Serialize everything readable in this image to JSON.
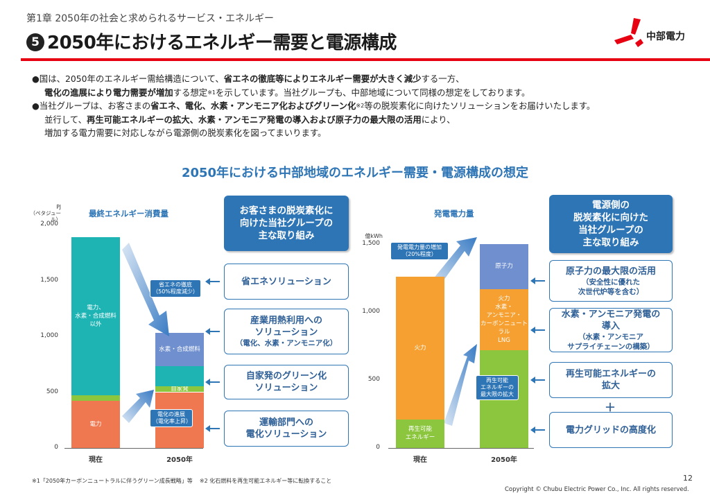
{
  "header": {
    "chapter": "第1章 2050年の社会と求められるサービス・エネルギー",
    "number": "5",
    "title": "2050年におけるエネルギー需要と電源構成",
    "logo_text": "中部電力",
    "accent": "#e60012"
  },
  "bullets": [
    {
      "segs": [
        [
          "n",
          "●国は、2050年のエネルギー需給構造について、"
        ],
        [
          "b",
          "省エネの徹底等によりエネルギー需要が大きく減少"
        ],
        [
          "n",
          "する一方、"
        ]
      ],
      "indent": false
    },
    {
      "segs": [
        [
          "b",
          "電化の進展により電力需要が増加"
        ],
        [
          "n",
          "する想定"
        ],
        [
          "s",
          "※1"
        ],
        [
          "n",
          "を示しています。当社グループも、中部地域について同様の想定をしております。"
        ]
      ],
      "indent": true
    },
    {
      "segs": [
        [
          "n",
          "●当社グループは、お客さまの"
        ],
        [
          "b",
          "省エネ、電化、水素・アンモニア化およびグリーン化"
        ],
        [
          "s",
          "※2"
        ],
        [
          "n",
          "等の脱炭素化に向けたソリューションをお届けいたします。"
        ]
      ],
      "indent": false
    },
    {
      "segs": [
        [
          "n",
          "並行して、"
        ],
        [
          "b",
          "再生可能エネルギーの拡大、水素・アンモニア発電の導入および原子力の最大限の活用"
        ],
        [
          "n",
          "により、"
        ]
      ],
      "indent": true
    },
    {
      "segs": [
        [
          "n",
          "増加する電力需要に対応しながら電源側の脱炭素化を図ってまいります。"
        ]
      ],
      "indent": true
    }
  ],
  "section_title": "2050年における中部地域のエネルギー需要・電源構成の想定",
  "chart_data": [
    {
      "type": "bar",
      "title": "最終エネルギー消費量",
      "ylabel": "PJ",
      "ylabel_sub": "（ペタジュール）",
      "ylim": [
        0,
        2000
      ],
      "yticks": [
        "0",
        "500",
        "1,000",
        "1,500",
        "2,000"
      ],
      "categories": [
        "現在",
        "2050年"
      ],
      "series": [
        {
          "name": "電力",
          "values": [
            420,
            500
          ],
          "color": "#f07850"
        },
        {
          "name": "水素・合成燃料",
          "values": [
            0,
            300
          ],
          "color": "#6f8fcf"
        }
      ],
      "stacks": [
        [
          {
            "label": "電力",
            "value": 420,
            "color": "#f07850"
          },
          {
            "label": "",
            "value": 50,
            "color": "#8cc63f"
          },
          {
            "label": "電力、\n水素・合成燃料\n以外",
            "value": 1420,
            "color": "#1fb4b4"
          }
        ],
        [
          {
            "label": "",
            "value": 500,
            "color": "#f07850"
          },
          {
            "label": "自家発",
            "value": 50,
            "color": "#8cc63f"
          },
          {
            "label": "",
            "value": 180,
            "color": "#1fb4b4"
          },
          {
            "label": "水素・合成燃料",
            "value": 300,
            "color": "#6f8fcf"
          }
        ]
      ],
      "annotations": [
        "省エネの徹底\n（50%程度減少）",
        "電化の進展\n（電化率上昇）"
      ]
    },
    {
      "type": "bar",
      "title": "発電電力量",
      "ylabel": "億kWh",
      "ylim": [
        0,
        1500
      ],
      "yticks": [
        "0",
        "500",
        "1,000",
        "1,500"
      ],
      "categories": [
        "現在",
        "2050年"
      ],
      "stacks": [
        [
          {
            "label": "再生可能\nエネルギー",
            "value": 210,
            "color": "#8cc63f"
          },
          {
            "label": "火力",
            "value": 1050,
            "color": "#f5a030"
          }
        ],
        [
          {
            "label": "",
            "value": 720,
            "color": "#8cc63f"
          },
          {
            "label": "火力\n水素・\nアンモニア・\nカーボンニュートラル\nLNG",
            "value": 450,
            "color": "#f5a030"
          },
          {
            "label": "原子力",
            "value": 330,
            "color": "#6f8fcf"
          }
        ]
      ],
      "annotations": [
        "発電電力量の増加\n（20%程度）",
        "再生可能\nエネルギーの\n最大限の拡大"
      ]
    }
  ],
  "left_panel": {
    "header": "お客さまの脱炭素化に\n向けた当社グループの\n主な取り組み",
    "items": [
      {
        "title": "省エネソリューション",
        "sub": ""
      },
      {
        "title": "産業用熱利用への\nソリューション",
        "sub": "（電化、水素・アンモニア化）"
      },
      {
        "title": "自家発のグリーン化\nソリューション",
        "sub": ""
      },
      {
        "title": "運輸部門への\n電化ソリューション",
        "sub": ""
      }
    ]
  },
  "right_panel": {
    "header": "電源側の\n脱炭素化に向けた\n当社グループの\n主な取り組み",
    "items": [
      {
        "title": "原子力の最大限の活用",
        "sub": "（安全性に優れた\n次世代炉等を含む）"
      },
      {
        "title": "水素・アンモニア発電の\n導入",
        "sub": "（水素・アンモニア\nサプライチェーンの構築）"
      },
      {
        "title": "再生可能エネルギーの\n拡大",
        "sub": ""
      },
      {
        "title": "電力グリッドの高度化",
        "sub": ""
      }
    ],
    "plus": "＋"
  },
  "footer": {
    "footnote1": "※1「2050年カーボンニュートラルに伴うグリーン成長戦略」等",
    "footnote2": "※2 化石燃料を再生可能エネルギー等に転換すること",
    "page": "12",
    "copyright": "Copyright © Chubu Electric Power Co., Inc. All rights reserved."
  }
}
